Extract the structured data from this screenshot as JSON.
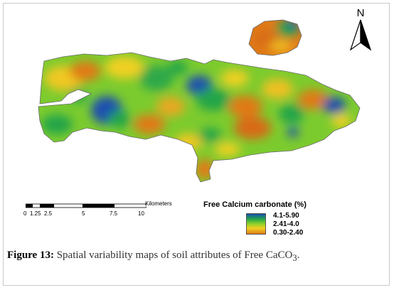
{
  "map": {
    "north_label": "N",
    "scale": {
      "ticks": [
        "0",
        "1.25",
        "2.5",
        "5",
        "7.5",
        "10"
      ],
      "unit": "Kilometers"
    },
    "legend": {
      "title": "Free Calcium carbonate (%)",
      "classes": [
        {
          "label": "4.1-5.90",
          "color": "#1a4fb0"
        },
        {
          "label": "2.41-4.0",
          "color": "#8fd12a"
        },
        {
          "label": "0.30-2.40",
          "color": "#e07a18"
        }
      ]
    }
  },
  "caption": {
    "figure_label": "Figure 13:",
    "text": " Spatial variability maps of soil attributes of Free CaCO",
    "subscript": "3",
    "end": "."
  }
}
